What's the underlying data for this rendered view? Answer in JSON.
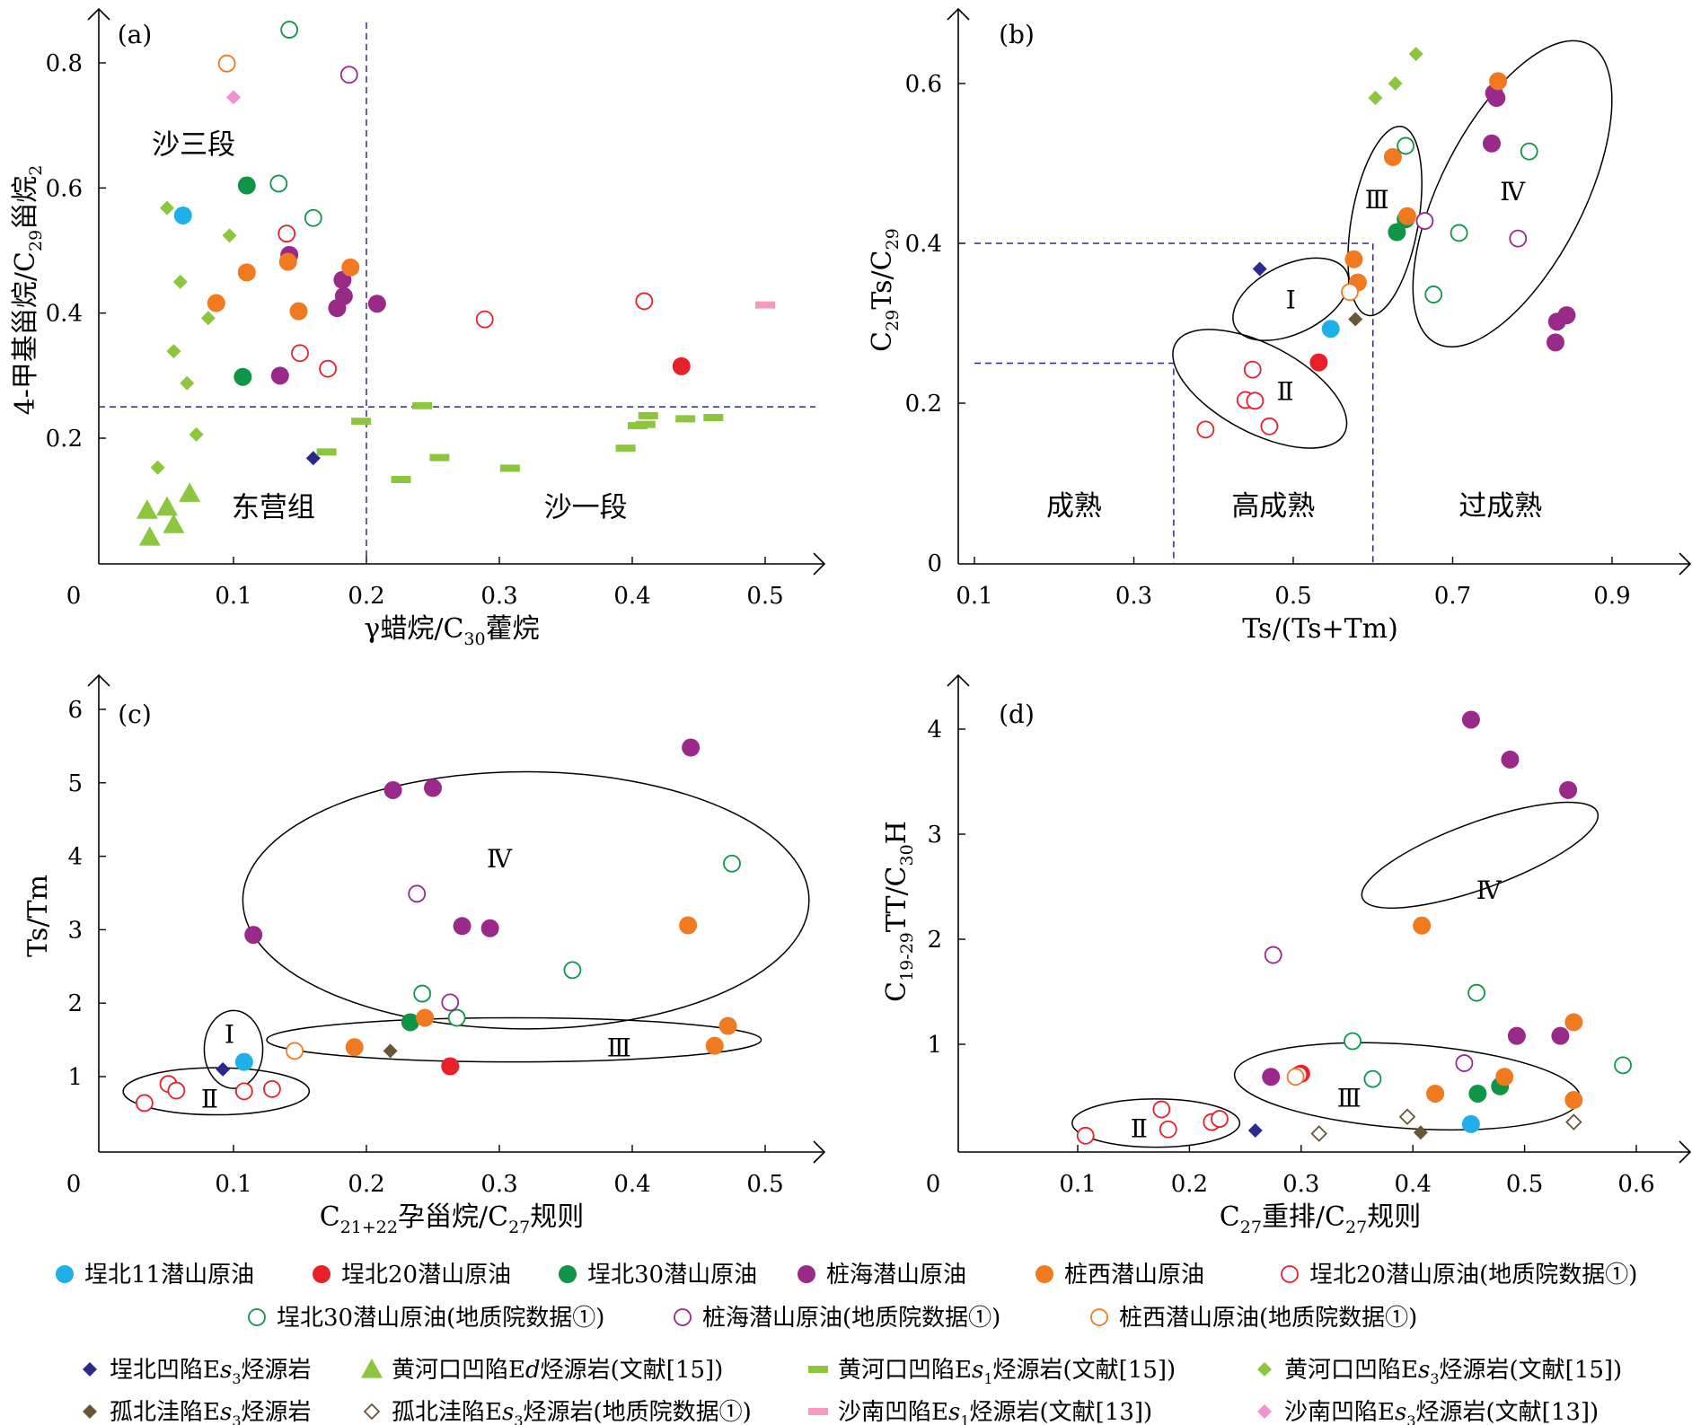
{
  "colors": {
    "maibei11": "#1fb0ea",
    "maibei20": "#e8202a",
    "maibei30": "#109547",
    "zhuanghai": "#9a2a8a",
    "zhuangxi": "#f17a21",
    "yellowgreen": "#8cc63f",
    "navy": "#2b2a8c",
    "brown": "#6b5537",
    "pink": "#f49ac1",
    "pink_diamond": "#f291d2",
    "dash": "#2b2a8c",
    "axis": "#000000"
  },
  "legend": {
    "rows": [
      [
        {
          "series": "mb11",
          "label": "埕北11潜山原油"
        },
        {
          "series": "mb20",
          "label": "埕北20潜山原油"
        },
        {
          "series": "mb30",
          "label": "埕北30潜山原油"
        },
        {
          "series": "zh",
          "label": "桩海潜山原油"
        },
        {
          "series": "zx",
          "label": "桩西潜山原油"
        },
        {
          "series": "mb20g",
          "label": "埕北20潜山原油(地质院数据①)"
        }
      ],
      [
        {
          "series": "mb30g",
          "label": "埕北30潜山原油(地质院数据①)"
        },
        {
          "series": "zhg",
          "label": "桩海潜山原油(地质院数据①)"
        },
        {
          "series": "zxg",
          "label": "桩西潜山原油(地质院数据①)"
        }
      ],
      [
        {
          "series": "cbs",
          "label": "埕北凹陷Es3烃源岩"
        },
        {
          "series": "hheEd",
          "label": "黄河口凹陷Ed烃源岩(文献[15])"
        },
        {
          "series": "hheEs1",
          "label": "黄河口凹陷Es1烃源岩(文献[15])"
        },
        {
          "series": "hheEs3",
          "label": "黄河口凹陷Es3烃源岩(文献[15])"
        }
      ],
      [
        {
          "series": "gb",
          "label": "孤北洼陷Es3烃源岩"
        },
        {
          "series": "gbg",
          "label": "孤北洼陷Es3烃源岩(地质院数据①)"
        },
        {
          "series": "snEs1",
          "label": "沙南凹陷Es1烃源岩(文献[13])"
        },
        {
          "series": "snEs3",
          "label": "沙南凹陷Es3烃源岩(文献[13])"
        }
      ]
    ]
  },
  "chart_data": [
    {
      "id": "a",
      "type": "scatter",
      "panel_label": "(a)",
      "xlabel": "γ蜡烷/C30藿烷",
      "ylabel": "4-甲基甾烷/C29甾烷2",
      "xlim": [
        0,
        0.52
      ],
      "ylim": [
        0,
        0.87
      ],
      "xticks": [
        "0",
        "0.1",
        "0.2",
        "0.3",
        "0.4",
        "0.5"
      ],
      "xtick_values": [
        0,
        0.1,
        0.2,
        0.3,
        0.4,
        0.5
      ],
      "yticks": [
        "0.2",
        "0.4",
        "0.6",
        "0.8"
      ],
      "ytick_values": [
        0.2,
        0.4,
        0.6,
        0.8
      ],
      "hlines": [
        0.25
      ],
      "vlines": [
        0.2
      ],
      "region_labels": [
        {
          "text": "沙三段",
          "x": 0.07,
          "y": 0.67
        },
        {
          "text": "东营组",
          "x": 0.13,
          "y": 0.09
        },
        {
          "text": "沙一段",
          "x": 0.365,
          "y": 0.09
        }
      ],
      "series": {
        "mb11": [
          [
            0.062,
            0.556
          ]
        ],
        "mb20": [
          [
            0.437,
            0.315
          ]
        ],
        "mb30": [
          [
            0.11,
            0.604
          ],
          [
            0.107,
            0.298
          ]
        ],
        "zh": [
          [
            0.142,
            0.493
          ],
          [
            0.182,
            0.453
          ],
          [
            0.183,
            0.427
          ],
          [
            0.178,
            0.408
          ],
          [
            0.208,
            0.415
          ],
          [
            0.135,
            0.3
          ]
        ],
        "zx": [
          [
            0.087,
            0.416
          ],
          [
            0.11,
            0.465
          ],
          [
            0.141,
            0.482
          ],
          [
            0.149,
            0.403
          ],
          [
            0.188,
            0.473
          ]
        ],
        "mb20g": [
          [
            0.14,
            0.527
          ],
          [
            0.15,
            0.336
          ],
          [
            0.171,
            0.311
          ],
          [
            0.289,
            0.39
          ],
          [
            0.409,
            0.419
          ]
        ],
        "mb30g": [
          [
            0.142,
            0.853
          ],
          [
            0.134,
            0.607
          ],
          [
            0.16,
            0.552
          ]
        ],
        "zhg": [
          [
            0.187,
            0.781
          ]
        ],
        "zxg": [
          [
            0.095,
            0.799
          ]
        ],
        "cbs": [
          [
            0.16,
            0.168
          ]
        ],
        "hheEd": [
          [
            0.035,
            0.085
          ],
          [
            0.05,
            0.09
          ],
          [
            0.067,
            0.112
          ],
          [
            0.037,
            0.042
          ],
          [
            0.055,
            0.062
          ]
        ],
        "hheEs1": [
          [
            0.17,
            0.178
          ],
          [
            0.196,
            0.227
          ],
          [
            0.242,
            0.252
          ],
          [
            0.226,
            0.134
          ],
          [
            0.255,
            0.169
          ],
          [
            0.308,
            0.152
          ],
          [
            0.395,
            0.184
          ],
          [
            0.404,
            0.22
          ],
          [
            0.412,
            0.236
          ],
          [
            0.41,
            0.222
          ],
          [
            0.44,
            0.231
          ],
          [
            0.461,
            0.233
          ]
        ],
        "hheEs3": [
          [
            0.05,
            0.568
          ],
          [
            0.097,
            0.524
          ],
          [
            0.06,
            0.45
          ],
          [
            0.081,
            0.392
          ],
          [
            0.055,
            0.339
          ],
          [
            0.065,
            0.288
          ],
          [
            0.072,
            0.206
          ],
          [
            0.043,
            0.153
          ]
        ],
        "snEs1": [
          [
            0.5,
            0.413
          ]
        ],
        "snEs3": [
          [
            0.1,
            0.745
          ]
        ]
      }
    },
    {
      "id": "b",
      "type": "scatter",
      "panel_label": "(b)",
      "xlabel": "Ts/(Ts+Tm)",
      "ylabel": "C29Ts/C29",
      "xlim": [
        0.1,
        0.97
      ],
      "ylim": [
        0,
        0.65
      ],
      "xticks": [
        "0.1",
        "0.3",
        "0.5",
        "0.7",
        "0.9"
      ],
      "xtick_values": [
        0.1,
        0.3,
        0.5,
        0.7,
        0.9
      ],
      "yticks": [
        "0",
        "0.2",
        "0.4",
        "0.6"
      ],
      "ytick_values": [
        0,
        0.2,
        0.4,
        0.6
      ],
      "dashed_paths": [
        [
          [
            0.1,
            0.25
          ],
          [
            0.35,
            0.25
          ],
          [
            0.35,
            0
          ]
        ],
        [
          [
            0.1,
            0.4
          ],
          [
            0.6,
            0.4
          ],
          [
            0.6,
            0
          ]
        ]
      ],
      "region_labels": [
        {
          "text": "成熟",
          "x": 0.225,
          "y": 0.072
        },
        {
          "text": "高成熟",
          "x": 0.475,
          "y": 0.072
        },
        {
          "text": "过成熟",
          "x": 0.76,
          "y": 0.072
        }
      ],
      "ellipses": [
        {
          "label": "Ⅰ",
          "cx": 0.497,
          "cy": 0.33,
          "rx": 0.078,
          "ry": 0.043,
          "rot": 26,
          "lx": 0.497,
          "ly": 0.33
        },
        {
          "label": "Ⅱ",
          "cx": 0.458,
          "cy": 0.218,
          "rx": 0.12,
          "ry": 0.055,
          "rot": -28,
          "lx": 0.49,
          "ly": 0.215
        },
        {
          "label": "Ⅲ",
          "cx": 0.615,
          "cy": 0.428,
          "rx": 0.12,
          "ry": 0.042,
          "rot": 80,
          "lx": 0.605,
          "ly": 0.455
        },
        {
          "label": "Ⅳ",
          "cx": 0.775,
          "cy": 0.462,
          "rx": 0.21,
          "ry": 0.09,
          "rot": 63,
          "lx": 0.775,
          "ly": 0.465
        }
      ],
      "series": {
        "mb11": [
          [
            0.547,
            0.293
          ]
        ],
        "mb20": [
          [
            0.532,
            0.251
          ]
        ],
        "mb30": [
          [
            0.641,
            0.43
          ],
          [
            0.63,
            0.414
          ]
        ],
        "zh": [
          [
            0.752,
            0.588
          ],
          [
            0.755,
            0.582
          ],
          [
            0.749,
            0.525
          ],
          [
            0.831,
            0.302
          ],
          [
            0.843,
            0.31
          ],
          [
            0.829,
            0.276
          ]
        ],
        "zx": [
          [
            0.757,
            0.603
          ],
          [
            0.625,
            0.508
          ],
          [
            0.643,
            0.434
          ],
          [
            0.576,
            0.38
          ],
          [
            0.581,
            0.351
          ]
        ],
        "mb20g": [
          [
            0.449,
            0.242
          ],
          [
            0.44,
            0.204
          ],
          [
            0.452,
            0.203
          ],
          [
            0.47,
            0.171
          ],
          [
            0.39,
            0.167
          ]
        ],
        "mb30g": [
          [
            0.641,
            0.522
          ],
          [
            0.796,
            0.515
          ],
          [
            0.708,
            0.413
          ],
          [
            0.676,
            0.336
          ]
        ],
        "zhg": [
          [
            0.665,
            0.428
          ],
          [
            0.782,
            0.406
          ]
        ],
        "zxg": [
          [
            0.571,
            0.339
          ]
        ],
        "cbs": [
          [
            0.458,
            0.368
          ]
        ],
        "gb": [
          [
            0.578,
            0.305
          ]
        ],
        "hheEs3": [
          [
            0.654,
            0.637
          ],
          [
            0.628,
            0.6
          ],
          [
            0.603,
            0.582
          ]
        ]
      }
    },
    {
      "id": "c",
      "type": "scatter",
      "panel_label": "(c)",
      "xlabel": "C21+22孕甾烷/C27规则",
      "ylabel": "Ts/Tm",
      "xlim": [
        0,
        0.52
      ],
      "ylim": [
        0,
        6.3
      ],
      "xticks": [
        "0",
        "0.1",
        "0.2",
        "0.3",
        "0.4",
        "0.5"
      ],
      "xtick_values": [
        0,
        0.1,
        0.2,
        0.3,
        0.4,
        0.5
      ],
      "yticks": [
        "1",
        "2",
        "3",
        "4",
        "5",
        "6"
      ],
      "ytick_values": [
        1,
        2,
        3,
        4,
        5,
        6
      ],
      "ellipses": [
        {
          "label": "Ⅰ",
          "cx": 0.1,
          "cy": 1.37,
          "rx": 0.022,
          "ry": 0.53,
          "rot": 0,
          "lx": 0.097,
          "ly": 1.58
        },
        {
          "label": "Ⅱ",
          "cx": 0.087,
          "cy": 0.8,
          "rx": 0.07,
          "ry": 0.32,
          "rot": 0,
          "lx": 0.082,
          "ly": 0.7
        },
        {
          "label": "Ⅲ",
          "cx": 0.311,
          "cy": 1.5,
          "rx": 0.186,
          "ry": 0.3,
          "rot": 0,
          "lx": 0.39,
          "ly": 1.4
        },
        {
          "label": "Ⅳ",
          "cx": 0.32,
          "cy": 3.4,
          "rx": 0.213,
          "ry": 1.75,
          "rot": 0,
          "lx": 0.3,
          "ly": 3.97
        }
      ],
      "series": {
        "mb11": [
          [
            0.108,
            1.2
          ]
        ],
        "mb20": [
          [
            0.263,
            1.14
          ]
        ],
        "mb30": [
          [
            0.233,
            1.74
          ]
        ],
        "zh": [
          [
            0.444,
            5.48
          ],
          [
            0.22,
            4.9
          ],
          [
            0.25,
            4.93
          ],
          [
            0.115,
            2.93
          ],
          [
            0.272,
            3.05
          ],
          [
            0.293,
            3.02
          ]
        ],
        "zx": [
          [
            0.442,
            3.06
          ],
          [
            0.244,
            1.8
          ],
          [
            0.191,
            1.4
          ],
          [
            0.462,
            1.42
          ],
          [
            0.472,
            1.69
          ]
        ],
        "mb20g": [
          [
            0.033,
            0.64
          ],
          [
            0.051,
            0.9
          ],
          [
            0.057,
            0.81
          ],
          [
            0.108,
            0.8
          ],
          [
            0.129,
            0.83
          ]
        ],
        "mb30g": [
          [
            0.475,
            3.9
          ],
          [
            0.355,
            2.45
          ],
          [
            0.242,
            2.13
          ],
          [
            0.268,
            1.8
          ]
        ],
        "zhg": [
          [
            0.238,
            3.49
          ],
          [
            0.263,
            2.01
          ]
        ],
        "zxg": [
          [
            0.146,
            1.35
          ]
        ],
        "cbs": [
          [
            0.092,
            1.1
          ]
        ],
        "gb": [
          [
            0.218,
            1.35
          ]
        ]
      }
    },
    {
      "id": "d",
      "type": "scatter",
      "panel_label": "(d)",
      "xlabel": "C27重排/C27规则",
      "ylabel": "C19-29TT/C30H",
      "xlim": [
        0,
        0.65
      ],
      "ylim": [
        0,
        4.4
      ],
      "xticks": [
        "0",
        "0.1",
        "0.2",
        "0.3",
        "0.4",
        "0.5",
        "0.6"
      ],
      "xtick_values": [
        0,
        0.1,
        0.2,
        0.3,
        0.4,
        0.5,
        0.6
      ],
      "yticks": [
        "1",
        "2",
        "3",
        "4"
      ],
      "ytick_values": [
        1,
        2,
        3,
        4
      ],
      "ellipses": [
        {
          "label": "Ⅱ",
          "cx": 0.17,
          "cy": 0.25,
          "rx": 0.075,
          "ry": 0.23,
          "rot": 0,
          "lx": 0.155,
          "ly": 0.2
        },
        {
          "label": "Ⅲ",
          "cx": 0.395,
          "cy": 0.6,
          "rx": 0.155,
          "ry": 0.4,
          "rot": -4,
          "lx": 0.343,
          "ly": 0.49
        },
        {
          "label": "Ⅳ",
          "cx": 0.46,
          "cy": 2.8,
          "rx": 0.315,
          "ry": 0.112,
          "rot": -70,
          "lx": 0.468,
          "ly": 2.47
        }
      ],
      "series": {
        "mb11": [
          [
            0.452,
            0.24
          ]
        ],
        "mb20": [
          [
            0.3,
            0.72
          ]
        ],
        "mb30": [
          [
            0.458,
            0.53
          ],
          [
            0.478,
            0.6
          ]
        ],
        "zh": [
          [
            0.452,
            4.09
          ],
          [
            0.487,
            3.71
          ],
          [
            0.539,
            3.42
          ],
          [
            0.493,
            1.08
          ],
          [
            0.532,
            1.08
          ],
          [
            0.273,
            0.69
          ]
        ],
        "zx": [
          [
            0.408,
            2.13
          ],
          [
            0.544,
            1.21
          ],
          [
            0.482,
            0.69
          ],
          [
            0.42,
            0.53
          ],
          [
            0.544,
            0.47
          ]
        ],
        "mb20g": [
          [
            0.107,
            0.13
          ],
          [
            0.175,
            0.38
          ],
          [
            0.181,
            0.19
          ],
          [
            0.22,
            0.26
          ],
          [
            0.227,
            0.29
          ],
          [
            0.298,
            0.71
          ]
        ],
        "mb30g": [
          [
            0.457,
            1.49
          ],
          [
            0.346,
            1.03
          ],
          [
            0.364,
            0.67
          ],
          [
            0.588,
            0.8
          ]
        ],
        "zhg": [
          [
            0.275,
            1.85
          ],
          [
            0.446,
            0.82
          ]
        ],
        "zxg": [
          [
            0.295,
            0.69
          ]
        ],
        "cbs": [
          [
            0.259,
            0.18
          ]
        ],
        "gb": [
          [
            0.407,
            0.16
          ]
        ],
        "gbg": [
          [
            0.316,
            0.15
          ],
          [
            0.395,
            0.31
          ],
          [
            0.544,
            0.26
          ]
        ]
      }
    }
  ]
}
